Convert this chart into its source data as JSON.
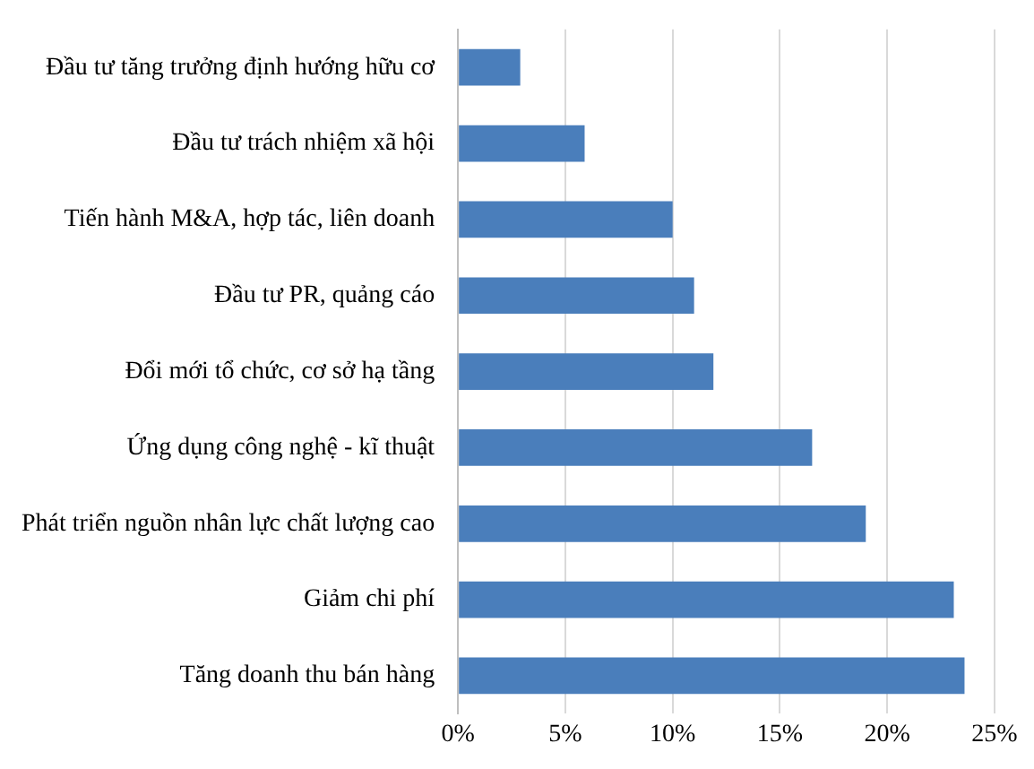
{
  "chart_data": {
    "type": "bar",
    "orientation": "horizontal",
    "categories": [
      "Đầu tư tăng trưởng định hướng hữu cơ",
      "Đầu tư trách nhiệm xã hội",
      "Tiến hành M&A, hợp tác, liên doanh",
      "Đầu tư PR, quảng cáo",
      "Đổi mới tổ chức, cơ sở hạ tầng",
      "Ứng dụng công nghệ - kĩ thuật",
      "Phát triển nguồn nhân lực chất lượng cao",
      "Giảm chi phí",
      "Tăng doanh thu bán hàng"
    ],
    "values": [
      2.9,
      5.9,
      10.0,
      11.0,
      11.9,
      16.5,
      19.0,
      23.1,
      23.6
    ],
    "color": "#4a7ebb",
    "xlim": [
      0,
      25
    ],
    "xticks": [
      {
        "value": 0,
        "label": "0%"
      },
      {
        "value": 5,
        "label": "5%"
      },
      {
        "value": 10,
        "label": "10%"
      },
      {
        "value": 15,
        "label": "15%"
      },
      {
        "value": 20,
        "label": "20%"
      },
      {
        "value": 25,
        "label": "25%"
      }
    ],
    "grid": "x",
    "legend": false
  }
}
